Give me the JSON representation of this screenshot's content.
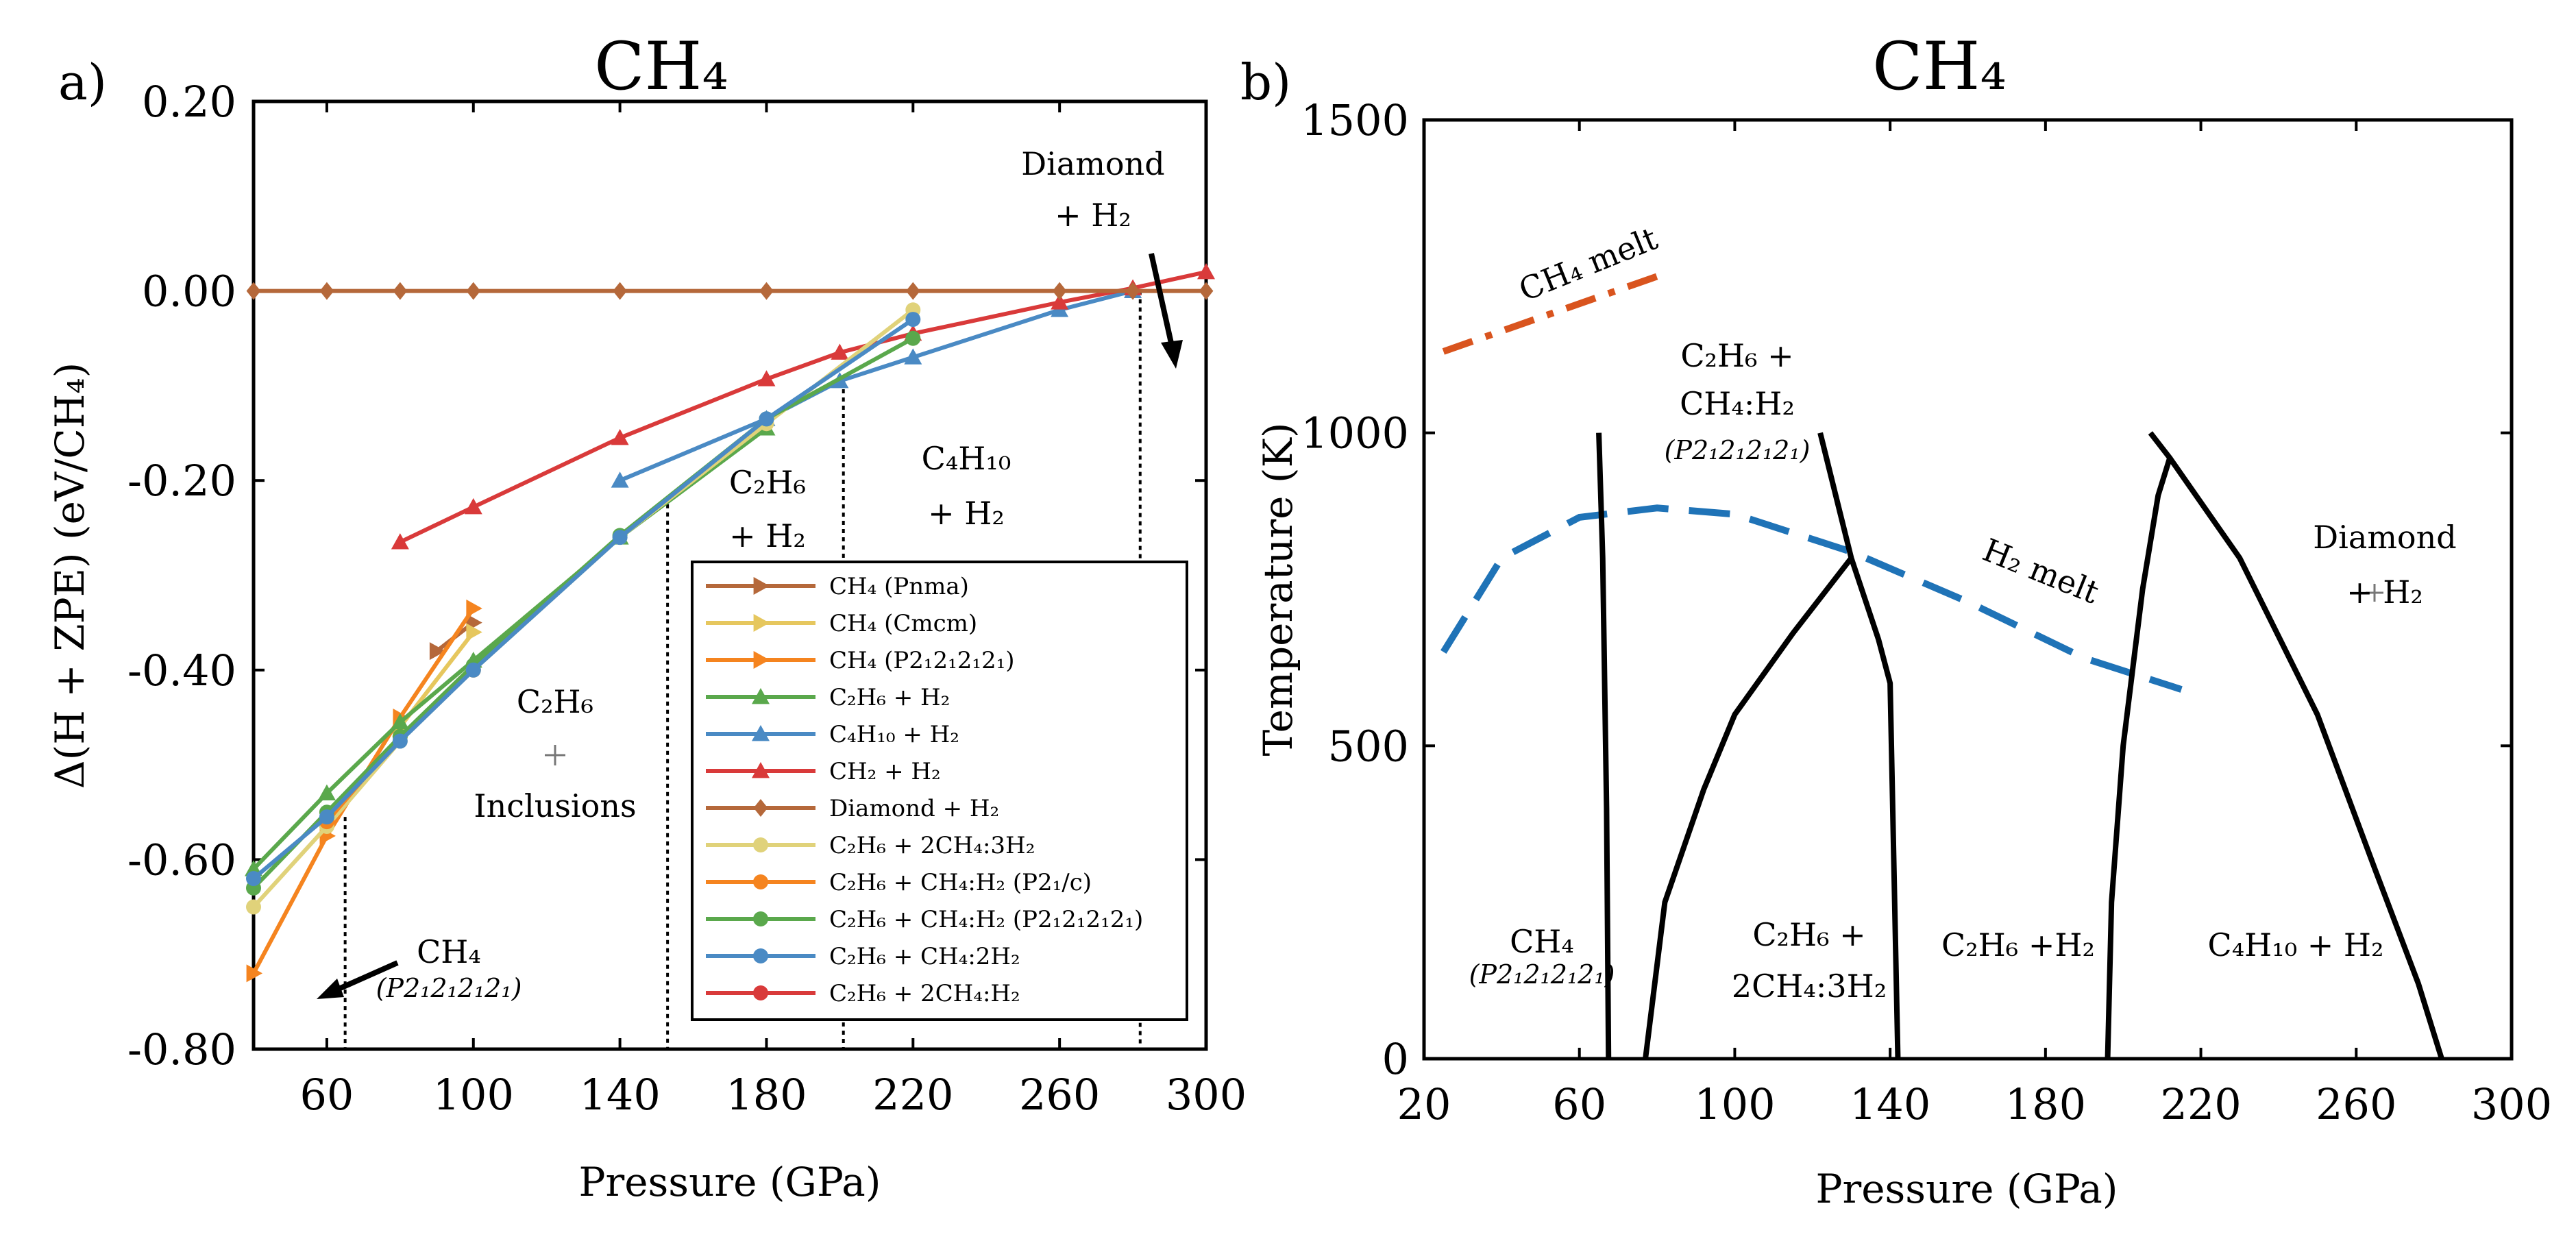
{
  "chart_data": [
    {
      "panel": "a)",
      "type": "line",
      "title": "CH₄",
      "xlabel": "Pressure (GPa)",
      "ylabel": "Δ(H + ZPE) (eV/CH₄)",
      "xlim": [
        40,
        300
      ],
      "ylim": [
        -0.8,
        0.2
      ],
      "xticks": [
        60,
        100,
        140,
        180,
        220,
        260,
        300
      ],
      "xtick_labels": [
        "60",
        "100",
        "140",
        "180",
        "220",
        "260",
        "300"
      ],
      "yticks": [
        0.2,
        0.0,
        -0.2,
        -0.4,
        -0.6,
        -0.8
      ],
      "ytick_labels": [
        "0.20",
        "0.00",
        "-0.20",
        "-0.40",
        "-0.60",
        "-0.80"
      ],
      "phase_boundaries_x": [
        65,
        153,
        201,
        282
      ],
      "series": [
        {
          "name": "CH₄ (Pnma)",
          "color": "#b5683a",
          "marker": "triangle-right",
          "x": [
            90,
            100
          ],
          "y": [
            -0.38,
            -0.35
          ]
        },
        {
          "name": "CH₄ (Cmcm)",
          "color": "#e6c75e",
          "marker": "triangle-right",
          "x": [
            80,
            100
          ],
          "y": [
            -0.46,
            -0.36
          ]
        },
        {
          "name": "CH₄ (P2₁2₁2₁2₁)",
          "color": "#f5841f",
          "marker": "triangle-right",
          "x": [
            40,
            60,
            80,
            100
          ],
          "y": [
            -0.72,
            -0.575,
            -0.45,
            -0.335
          ]
        },
        {
          "name": "C₂H₆ + H₂",
          "color": "#5aa84c",
          "marker": "triangle-up",
          "x": [
            40,
            60,
            80,
            100,
            140,
            180
          ],
          "y": [
            -0.61,
            -0.53,
            -0.455,
            -0.39,
            -0.26,
            -0.145
          ]
        },
        {
          "name": "C₄H₁₀ + H₂",
          "color": "#4a8ac4",
          "marker": "triangle-up",
          "x": [
            140,
            180,
            200,
            220,
            260,
            280
          ],
          "y": [
            -0.2,
            -0.135,
            -0.095,
            -0.07,
            -0.02,
            0.0
          ]
        },
        {
          "name": "CH₂ + H₂",
          "color": "#d93a3a",
          "marker": "triangle-up",
          "x": [
            80,
            100,
            140,
            180,
            200,
            220,
            260,
            280,
            300
          ],
          "y": [
            -0.265,
            -0.228,
            -0.155,
            -0.093,
            -0.065,
            -0.045,
            -0.012,
            0.003,
            0.02
          ]
        },
        {
          "name": "Diamond + H₂",
          "color": "#b5683a",
          "marker": "diamond",
          "x": [
            40,
            60,
            80,
            100,
            140,
            180,
            220,
            260,
            280,
            300
          ],
          "y": [
            0,
            0,
            0,
            0,
            0,
            0,
            0,
            0,
            0,
            0
          ]
        },
        {
          "name": "C₂H₆ + 2CH₄:3H₂",
          "color": "#e0d27a",
          "marker": "circle",
          "x": [
            40,
            60,
            80,
            100,
            140,
            180,
            220
          ],
          "y": [
            -0.65,
            -0.565,
            -0.475,
            -0.4,
            -0.26,
            -0.14,
            -0.02
          ]
        },
        {
          "name": "C₂H₆ + CH₄:H₂ (P2₁/c)",
          "color": "#f5841f",
          "marker": "circle",
          "x": [
            60,
            80,
            100
          ],
          "y": [
            -0.56,
            -0.47,
            -0.4
          ]
        },
        {
          "name": "C₂H₆ + CH₄:H₂ (P2₁2₁2₁2₁)",
          "color": "#5aa84c",
          "marker": "circle",
          "x": [
            40,
            60,
            80,
            100,
            140,
            180,
            220
          ],
          "y": [
            -0.63,
            -0.55,
            -0.47,
            -0.395,
            -0.258,
            -0.135,
            -0.05
          ]
        },
        {
          "name": "C₂H₆ + CH₄:2H₂",
          "color": "#4a8ac4",
          "marker": "circle",
          "x": [
            40,
            60,
            80,
            100,
            140,
            180,
            220
          ],
          "y": [
            -0.62,
            -0.555,
            -0.475,
            -0.4,
            -0.26,
            -0.135,
            -0.03
          ]
        },
        {
          "name": "C₂H₆ + 2CH₄:H₂",
          "color": "#d93a3a",
          "marker": "circle",
          "x": [],
          "y": []
        }
      ],
      "annotations": [
        {
          "id": "inclusions",
          "lines": [
            "C₂H₆",
            "Inclusions"
          ]
        },
        {
          "id": "c2h6",
          "lines": [
            "C₂H₆",
            "+ H₂"
          ]
        },
        {
          "id": "c4h10",
          "lines": [
            "C₄H₁₀",
            "+ H₂"
          ]
        },
        {
          "id": "diamond",
          "lines": [
            "Diamond",
            "+ H₂"
          ]
        },
        {
          "id": "ch4",
          "lines": [
            "CH₄",
            "(P2₁2₁2₁2₁)"
          ]
        }
      ]
    },
    {
      "panel": "b)",
      "type": "line",
      "title": "CH₄",
      "xlabel": "Pressure (GPa)",
      "ylabel": "Temperature (K)",
      "xlim": [
        20,
        300
      ],
      "ylim": [
        0,
        1500
      ],
      "xticks": [
        20,
        60,
        100,
        140,
        180,
        220,
        260,
        300
      ],
      "xtick_labels": [
        "20",
        "60",
        "100",
        "140",
        "180",
        "220",
        "260",
        "300"
      ],
      "yticks": [
        0,
        500,
        1000,
        1500
      ],
      "ytick_labels": [
        "0",
        "500",
        "1000",
        "1500"
      ],
      "series": [
        {
          "name": "CH₄ melt",
          "color": "#d9541e",
          "style": "dash-dot",
          "x": [
            25,
            80
          ],
          "y": [
            1130,
            1250
          ]
        },
        {
          "name": "H₂ melt",
          "color": "#1f73b7",
          "style": "dashed",
          "x": [
            25,
            40,
            60,
            80,
            100,
            130,
            160,
            190,
            215
          ],
          "y": [
            650,
            800,
            865,
            880,
            870,
            810,
            730,
            640,
            590
          ]
        },
        {
          "name": "boundary-1",
          "color": "#000000",
          "style": "solid",
          "x": [
            65,
            66,
            67,
            67.5
          ],
          "y": [
            1000,
            800,
            400,
            0
          ]
        },
        {
          "name": "boundary-2",
          "color": "#000000",
          "style": "solid",
          "x": [
            77,
            82,
            92,
            100,
            115,
            130
          ],
          "y": [
            0,
            250,
            430,
            550,
            680,
            800
          ]
        },
        {
          "name": "boundary-3",
          "color": "#000000",
          "style": "solid",
          "x": [
            122,
            130,
            137,
            140,
            141,
            142
          ],
          "y": [
            1000,
            800,
            670,
            600,
            300,
            0
          ]
        },
        {
          "name": "boundary-4",
          "color": "#000000",
          "style": "solid",
          "x": [
            196,
            197,
            200,
            205,
            209,
            212,
            207
          ],
          "y": [
            0,
            250,
            500,
            750,
            900,
            960,
            1000
          ]
        },
        {
          "name": "boundary-5",
          "color": "#000000",
          "style": "solid",
          "x": [
            212,
            230,
            250,
            265,
            276,
            282
          ],
          "y": [
            960,
            800,
            550,
            300,
            120,
            0
          ]
        }
      ],
      "annotations": [
        {
          "id": "ch4melt",
          "lines": [
            "CH₄ melt"
          ]
        },
        {
          "id": "h2melt",
          "lines": [
            "H₂ melt"
          ]
        },
        {
          "id": "c2h6-ch4h2",
          "lines": [
            "C₂H₆ +",
            "CH₄:H₂",
            "(P2₁2₁2₁2₁)"
          ]
        },
        {
          "id": "diamond",
          "lines": [
            "Diamond",
            "+ H₂"
          ]
        },
        {
          "id": "ch4",
          "lines": [
            "CH₄",
            "(P2₁2₁2₁2₁)"
          ]
        },
        {
          "id": "c2h6-2ch4",
          "lines": [
            "C₂H₆ +",
            "2CH₄:3H₂"
          ]
        },
        {
          "id": "c2h6-h2",
          "lines": [
            "C₂H₆ +H₂"
          ]
        },
        {
          "id": "c4h10",
          "lines": [
            "C₄H₁₀ + H₂"
          ]
        }
      ]
    }
  ]
}
